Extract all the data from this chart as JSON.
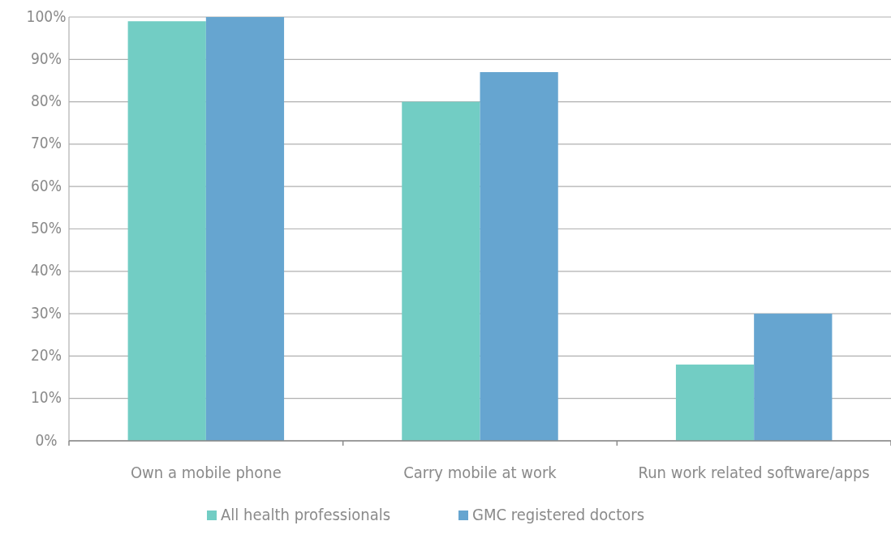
{
  "chart_data": {
    "type": "bar",
    "categories": [
      "Own a mobile phone",
      "Carry mobile at work",
      "Run work related software/apps"
    ],
    "series": [
      {
        "name": "All health professionals",
        "color": "#72cdc4",
        "values": [
          99,
          80,
          18
        ]
      },
      {
        "name": "GMC registered doctors",
        "color": "#66a5d0",
        "values": [
          100,
          87,
          30
        ]
      }
    ],
    "ylim": [
      0,
      100
    ],
    "yticks": [
      {
        "value": 0,
        "label": "0%"
      },
      {
        "value": 10,
        "label": "10%"
      },
      {
        "value": 20,
        "label": "20%"
      },
      {
        "value": 30,
        "label": "30%"
      },
      {
        "value": 40,
        "label": "40%"
      },
      {
        "value": 50,
        "label": "50%"
      },
      {
        "value": 60,
        "label": "60%"
      },
      {
        "value": 70,
        "label": "70%"
      },
      {
        "value": 80,
        "label": "80%"
      },
      {
        "value": 90,
        "label": "90%"
      },
      {
        "value": 100,
        "label": "100%"
      }
    ],
    "grid": "y",
    "legend": "bottom"
  }
}
